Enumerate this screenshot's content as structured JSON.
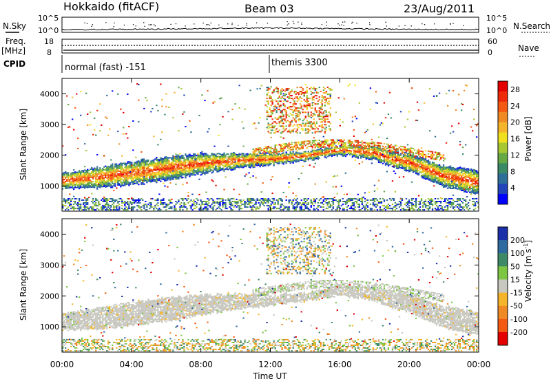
{
  "header": {
    "station": "Hokkaido (fitACF)",
    "beam": "Beam 03",
    "date": "23/Aug/2011"
  },
  "strip": {
    "nsky_label": "N.Sky",
    "nsearch_label": "N.Search",
    "nsky_ticks": [
      "10^5",
      "10^0"
    ],
    "nsky_right_ticks": [
      "10^5",
      "10^0"
    ],
    "freq_label": "Freq.",
    "freq_unit": "[MHz]",
    "freq_ticks": [
      "18",
      "8"
    ],
    "nave_label": "Nave",
    "nave_ticks": [
      "60",
      "0"
    ],
    "cpid_label": "CPID",
    "cpid_segments": [
      {
        "name": "normal (fast) -151",
        "start_h": 0.0
      },
      {
        "name": "themis 3300",
        "start_h": 12.0
      }
    ]
  },
  "chart_data": [
    {
      "type": "heatmap",
      "name": "power",
      "ylabel": "Slant Range [km]",
      "xlabel": "",
      "ylim": [
        180,
        4500
      ],
      "yticks": [
        "1000",
        "2000",
        "3000",
        "4000"
      ],
      "xlim_hours": [
        0,
        24
      ],
      "colorbar": {
        "label": "Power [dB]",
        "ticks": [
          "4",
          "8",
          "12",
          "16",
          "20",
          "24",
          "28"
        ],
        "range": [
          0,
          30
        ],
        "colors": [
          "#0000ff",
          "#2244bb",
          "#2e6f9a",
          "#3a8a66",
          "#66a844",
          "#a8c832",
          "#f0e020",
          "#f5b52a",
          "#f08a24",
          "#f55a12",
          "#ee2a0a",
          "#e40000"
        ]
      },
      "main_band_km": [
        [
          0,
          1150
        ],
        [
          2,
          1250
        ],
        [
          4,
          1400
        ],
        [
          6,
          1550
        ],
        [
          8,
          1700
        ],
        [
          10,
          1800
        ],
        [
          12,
          1850
        ],
        [
          14,
          1950
        ],
        [
          16,
          2150
        ],
        [
          18,
          2050
        ],
        [
          19,
          1850
        ],
        [
          20,
          1750
        ],
        [
          22,
          1300
        ],
        [
          24,
          1100
        ]
      ]
    },
    {
      "type": "heatmap",
      "name": "velocity",
      "ylabel": "Slant Range [km]",
      "xlabel": "Time UT",
      "ylim": [
        180,
        4500
      ],
      "yticks": [
        "1000",
        "2000",
        "3000",
        "4000"
      ],
      "xticks": [
        "00:00",
        "04:00",
        "08:00",
        "12:00",
        "16:00",
        "20:00",
        "00:00"
      ],
      "xlim_hours": [
        0,
        24
      ],
      "colorbar": {
        "label": "Velocity [m s",
        "label_sup": "-1",
        "label_end": "]",
        "ticks": [
          "200",
          "100",
          "50",
          "15",
          "-15",
          "-50",
          "-100",
          "-200"
        ],
        "colors": [
          "#1a2fa8",
          "#2e6aa0",
          "#3f8a66",
          "#7cc644",
          "#c8c8c0",
          "#f5b52a",
          "#f08a24",
          "#f55a12",
          "#e40000"
        ]
      }
    }
  ]
}
